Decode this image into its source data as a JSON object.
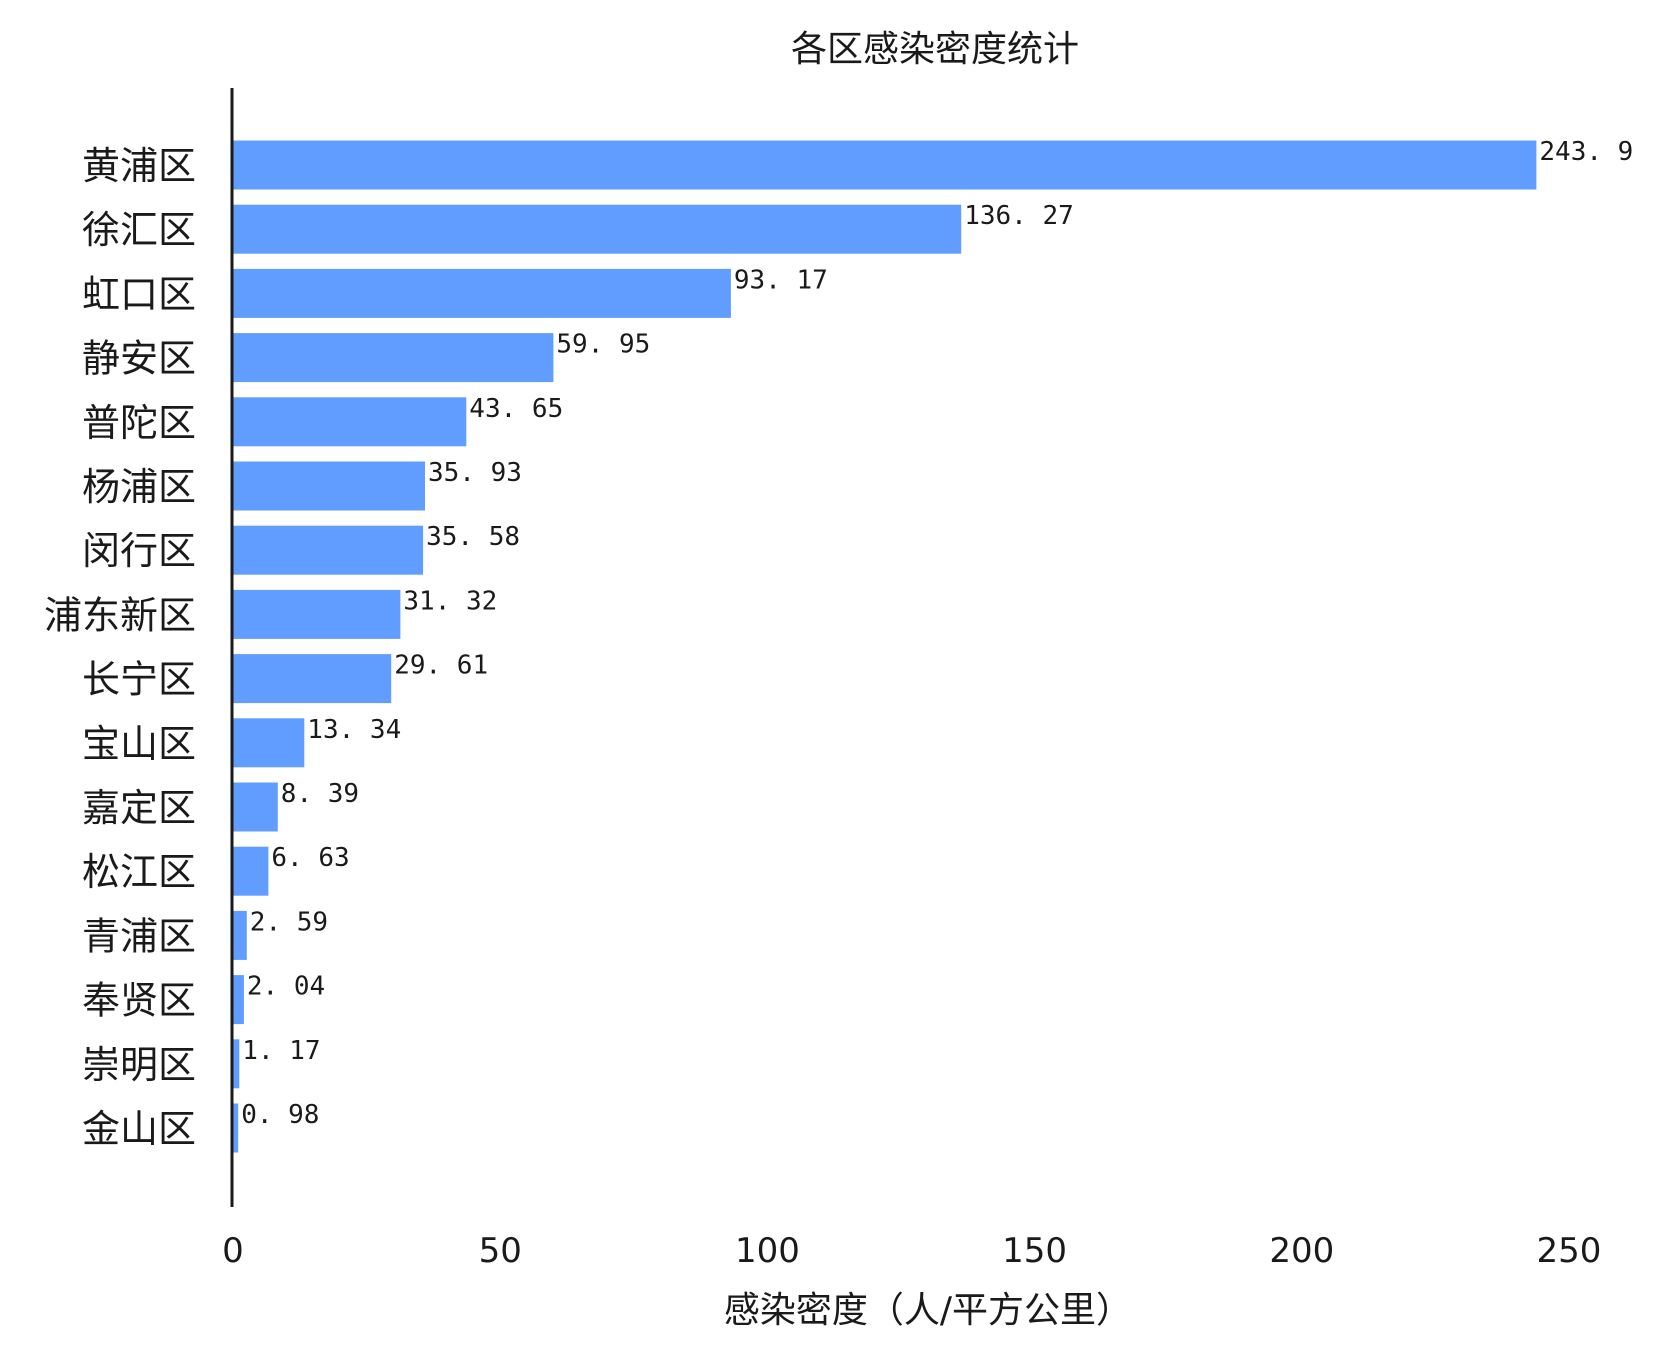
{
  "chart_data": {
    "type": "bar",
    "orientation": "horizontal",
    "title": "各区感染密度统计",
    "xlabel": "感染密度（人/平方公里）",
    "ylabel": "",
    "xlim": [
      0,
      250
    ],
    "xticks": [
      0,
      50,
      100,
      150,
      200,
      250
    ],
    "grid": false,
    "bar_color": "#619CFF",
    "axis_color": "#1a1a1a",
    "categories": [
      "黄浦区",
      "徐汇区",
      "虹口区",
      "静安区",
      "普陀区",
      "杨浦区",
      "闵行区",
      "浦东新区",
      "长宁区",
      "宝山区",
      "嘉定区",
      "松江区",
      "青浦区",
      "奉贤区",
      "崇明区",
      "金山区"
    ],
    "values": [
      243.9,
      136.27,
      93.17,
      59.95,
      43.65,
      35.93,
      35.58,
      31.32,
      29.61,
      13.34,
      8.39,
      6.63,
      2.59,
      2.04,
      1.17,
      0.98
    ],
    "value_labels": [
      "243. 9",
      "136. 27",
      "93. 17",
      "59. 95",
      "43. 65",
      "35. 93",
      "35. 58",
      "31. 32",
      "29. 61",
      "13. 34",
      "8. 39",
      "6. 63",
      "2. 59",
      "2. 04",
      "1. 17",
      "0. 98"
    ]
  }
}
